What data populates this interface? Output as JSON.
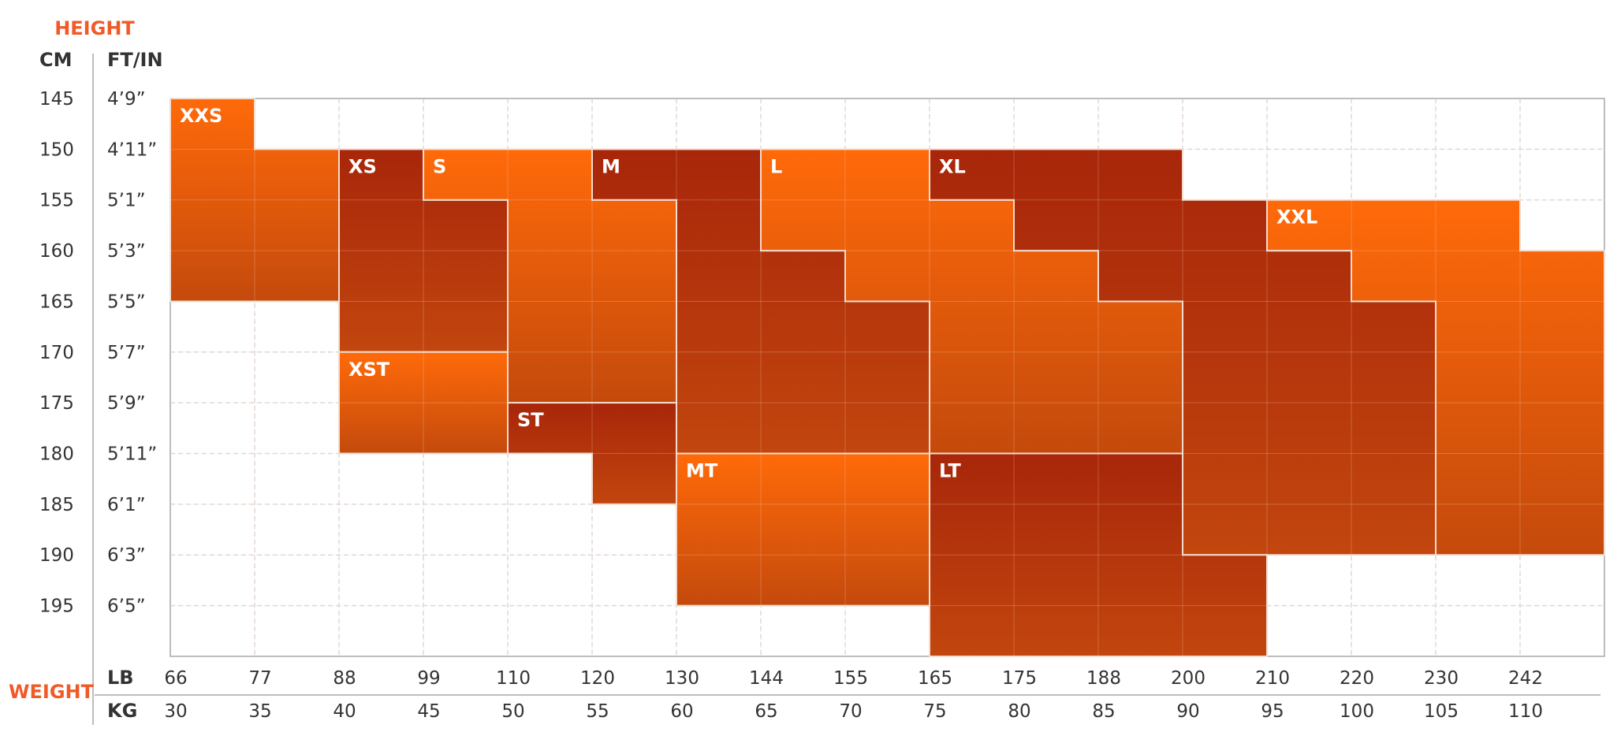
{
  "chart_data": {
    "type": "heatmap",
    "title": "",
    "height_label": "HEIGHT",
    "weight_label": "WEIGHT",
    "cm_header": "CM",
    "ftin_header": "FT/IN",
    "lb_header": "LB",
    "kg_header": "KG",
    "height_rows": [
      {
        "cm": "145",
        "ftin": "4’9”"
      },
      {
        "cm": "150",
        "ftin": "4’11”"
      },
      {
        "cm": "155",
        "ftin": "5’1”"
      },
      {
        "cm": "160",
        "ftin": "5’3”"
      },
      {
        "cm": "165",
        "ftin": "5’5”"
      },
      {
        "cm": "170",
        "ftin": "5’7”"
      },
      {
        "cm": "175",
        "ftin": "5’9”"
      },
      {
        "cm": "180",
        "ftin": "5’11”"
      },
      {
        "cm": "185",
        "ftin": "6’1”"
      },
      {
        "cm": "190",
        "ftin": "6’3”"
      },
      {
        "cm": "195",
        "ftin": "6’5”"
      }
    ],
    "weight_cols": [
      {
        "lb": "66",
        "kg": "30"
      },
      {
        "lb": "77",
        "kg": "35"
      },
      {
        "lb": "88",
        "kg": "40"
      },
      {
        "lb": "99",
        "kg": "45"
      },
      {
        "lb": "110",
        "kg": "50"
      },
      {
        "lb": "120",
        "kg": "55"
      },
      {
        "lb": "130",
        "kg": "60"
      },
      {
        "lb": "144",
        "kg": "65"
      },
      {
        "lb": "155",
        "kg": "70"
      },
      {
        "lb": "165",
        "kg": "75"
      },
      {
        "lb": "175",
        "kg": "80"
      },
      {
        "lb": "188",
        "kg": "85"
      },
      {
        "lb": "200",
        "kg": "90"
      },
      {
        "lb": "210",
        "kg": "95"
      },
      {
        "lb": "220",
        "kg": "100"
      },
      {
        "lb": "230",
        "kg": "105"
      },
      {
        "lb": "242",
        "kg": "110"
      }
    ],
    "grid_rows": 11,
    "grid_cols": 17,
    "sizes": [
      {
        "name": "XXS",
        "tone": "light",
        "polygon": [
          [
            0,
            0
          ],
          [
            1,
            0
          ],
          [
            1,
            1
          ],
          [
            2,
            1
          ],
          [
            2,
            4
          ],
          [
            0,
            4
          ]
        ]
      },
      {
        "name": "XS",
        "tone": "dark",
        "polygon": [
          [
            2,
            1
          ],
          [
            3,
            1
          ],
          [
            3,
            2
          ],
          [
            4,
            2
          ],
          [
            4,
            5
          ],
          [
            2,
            5
          ]
        ]
      },
      {
        "name": "S",
        "tone": "light",
        "polygon": [
          [
            3,
            1
          ],
          [
            5,
            1
          ],
          [
            5,
            2
          ],
          [
            6,
            2
          ],
          [
            6,
            6
          ],
          [
            4,
            6
          ],
          [
            4,
            2
          ],
          [
            3,
            2
          ]
        ]
      },
      {
        "name": "M",
        "tone": "dark",
        "polygon": [
          [
            5,
            1
          ],
          [
            7,
            1
          ],
          [
            7,
            3
          ],
          [
            8,
            3
          ],
          [
            8,
            4
          ],
          [
            9,
            4
          ],
          [
            9,
            7
          ],
          [
            6,
            7
          ],
          [
            6,
            2
          ],
          [
            5,
            2
          ]
        ]
      },
      {
        "name": "L",
        "tone": "light",
        "polygon": [
          [
            7,
            1
          ],
          [
            9,
            1
          ],
          [
            9,
            2
          ],
          [
            10,
            2
          ],
          [
            10,
            3
          ],
          [
            11,
            3
          ],
          [
            11,
            4
          ],
          [
            12,
            4
          ],
          [
            12,
            7
          ],
          [
            9,
            7
          ],
          [
            9,
            4
          ],
          [
            8,
            4
          ],
          [
            8,
            3
          ],
          [
            7,
            3
          ]
        ]
      },
      {
        "name": "XL",
        "tone": "dark",
        "polygon": [
          [
            9,
            1
          ],
          [
            12,
            1
          ],
          [
            12,
            2
          ],
          [
            13,
            2
          ],
          [
            13,
            3
          ],
          [
            14,
            3
          ],
          [
            14,
            4
          ],
          [
            15,
            4
          ],
          [
            15,
            9
          ],
          [
            12,
            9
          ],
          [
            12,
            4
          ],
          [
            11,
            4
          ],
          [
            11,
            3
          ],
          [
            10,
            3
          ],
          [
            10,
            2
          ],
          [
            9,
            2
          ]
        ]
      },
      {
        "name": "XXL",
        "tone": "light",
        "polygon": [
          [
            13,
            2
          ],
          [
            16,
            2
          ],
          [
            16,
            3
          ],
          [
            17,
            3
          ],
          [
            17,
            9
          ],
          [
            15,
            9
          ],
          [
            15,
            4
          ],
          [
            14,
            4
          ],
          [
            14,
            3
          ],
          [
            13,
            3
          ]
        ]
      },
      {
        "name": "XST",
        "tone": "light",
        "polygon": [
          [
            2,
            5
          ],
          [
            4,
            5
          ],
          [
            4,
            7
          ],
          [
            2,
            7
          ]
        ]
      },
      {
        "name": "ST",
        "tone": "dark",
        "polygon": [
          [
            4,
            6
          ],
          [
            6,
            6
          ],
          [
            6,
            8
          ],
          [
            5,
            8
          ],
          [
            5,
            7
          ],
          [
            4,
            7
          ]
        ]
      },
      {
        "name": "MT",
        "tone": "light",
        "polygon": [
          [
            6,
            7
          ],
          [
            9,
            7
          ],
          [
            9,
            10
          ],
          [
            6,
            10
          ]
        ]
      },
      {
        "name": "LT",
        "tone": "dark",
        "polygon": [
          [
            9,
            7
          ],
          [
            12,
            7
          ],
          [
            12,
            9
          ],
          [
            13,
            9
          ],
          [
            13,
            11
          ],
          [
            9,
            11
          ]
        ]
      }
    ]
  },
  "colors": {
    "accent": "#f05a28",
    "light_top": "#ff6a0a",
    "light_bottom": "#c44a0c",
    "dark_top": "#a8260a",
    "dark_bottom": "#c2460e",
    "grid": "#d9d9d9",
    "label": "#333333"
  }
}
